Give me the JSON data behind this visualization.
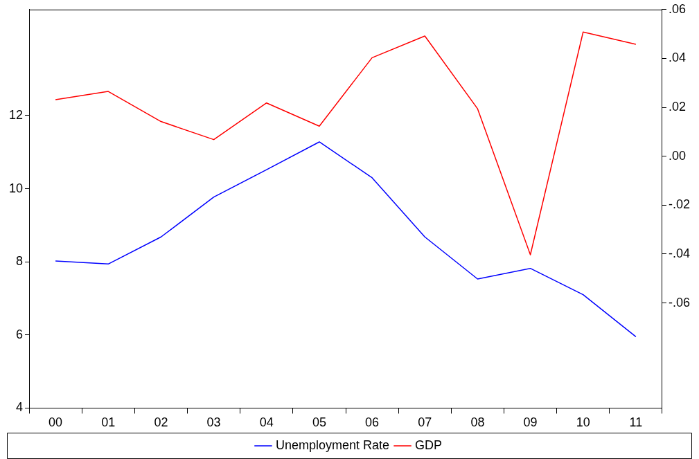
{
  "chart_data": {
    "type": "line",
    "categories": [
      "00",
      "01",
      "02",
      "03",
      "04",
      "05",
      "06",
      "07",
      "08",
      "09",
      "10",
      "11"
    ],
    "series": [
      {
        "name": "Unemployment Rate",
        "color": "#0000ff",
        "values": [
          8.02,
          7.94,
          8.68,
          9.77,
          10.52,
          11.28,
          10.3,
          8.68,
          7.53,
          7.82,
          7.1,
          5.95
        ]
      },
      {
        "name": "GDP",
        "color": "#ff0000",
        "axis": "y2",
        "values": [
          0.0231,
          0.0265,
          0.0142,
          0.0068,
          0.0218,
          0.0123,
          0.0403,
          0.0492,
          0.0194,
          -0.0403,
          0.0508,
          0.0458
        ]
      }
    ],
    "ylim": [
      4,
      14.9
    ],
    "yticks": [
      4,
      6,
      8,
      10,
      12
    ],
    "y2lim": [
      -0.103,
      0.06
    ],
    "y2ticks": [
      {
        "value": 0.06,
        "label": ".06"
      },
      {
        "value": 0.04,
        "label": ".04"
      },
      {
        "value": 0.02,
        "label": ".02"
      },
      {
        "value": 0,
        "label": ".00"
      },
      {
        "value": -0.02,
        "label": "-.02"
      },
      {
        "value": -0.04,
        "label": "-.04"
      },
      {
        "value": -0.06,
        "label": "-.06"
      }
    ],
    "grid": false,
    "legend": "bottom",
    "marker": "none",
    "line_style": "solid"
  }
}
